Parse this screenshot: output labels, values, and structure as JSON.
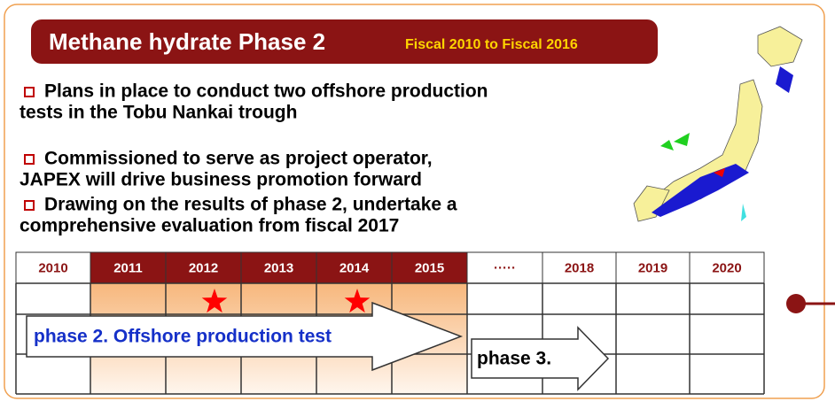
{
  "title": "Methane hydrate  Phase 2",
  "subtitle": "Fiscal 2010 to Fiscal 2016",
  "bullets": [
    [
      "Plans in place to conduct two offshore production",
      "tests in the Tobu Nankai trough"
    ],
    [
      "Commissioned to serve as project operator,",
      "JAPEX will drive business promotion forward"
    ],
    [
      "Drawing on the results of phase 2, undertake a",
      "comprehensive evaluation from fiscal 2017"
    ]
  ],
  "timeline": {
    "headers": [
      "2010",
      "2011",
      "2012",
      "2013",
      "2014",
      "2015",
      "·····",
      "2018",
      "2019",
      "2020"
    ],
    "phase2": "phase 2.  Offshore production test",
    "phase3": "phase 3."
  }
}
